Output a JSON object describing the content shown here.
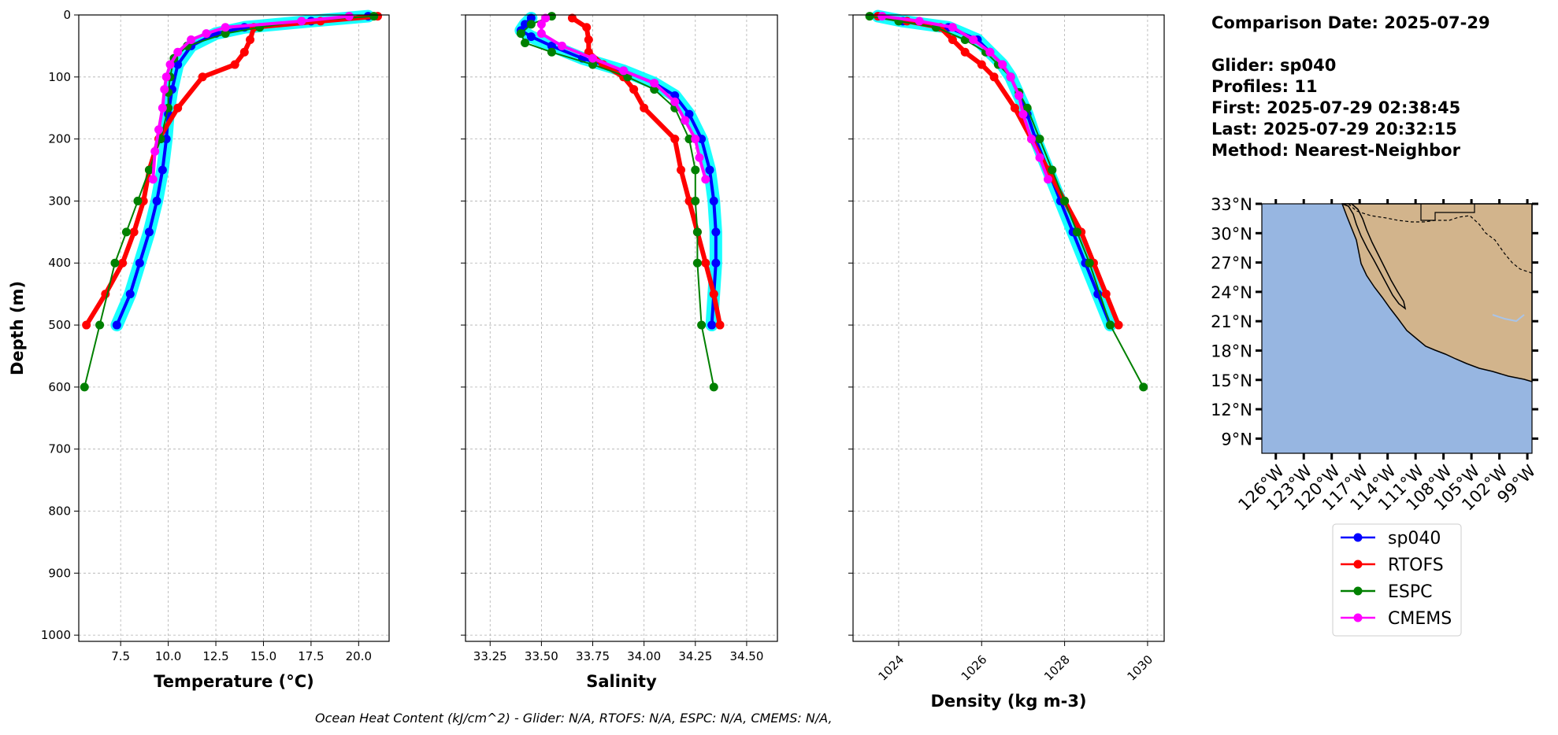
{
  "chart_data": [
    {
      "type": "line",
      "xlabel": "Temperature (°C)",
      "ylabel": "Depth (m)",
      "xlim": [
        5.3,
        21.6
      ],
      "ylim": [
        1010,
        0
      ],
      "xticks": [
        "7.5",
        "10.0",
        "12.5",
        "15.0",
        "17.5",
        "20.0"
      ],
      "yticks": [
        "0",
        "100",
        "200",
        "300",
        "400",
        "500",
        "600",
        "700",
        "800",
        "900",
        "1000"
      ],
      "grid": true,
      "series": [
        {
          "name": "sp040",
          "color": "#0000ff",
          "y": [
            2,
            10,
            20,
            30,
            50,
            80,
            120,
            160,
            200,
            250,
            300,
            350,
            400,
            450,
            500
          ],
          "x": [
            20.5,
            17.5,
            14.0,
            12.5,
            11.2,
            10.5,
            10.2,
            10.0,
            9.9,
            9.7,
            9.4,
            9.0,
            8.5,
            8.0,
            7.3
          ]
        },
        {
          "name": "RTOFS",
          "color": "#ff0000",
          "y": [
            2,
            10,
            20,
            40,
            60,
            80,
            100,
            150,
            200,
            250,
            300,
            350,
            400,
            450,
            500
          ],
          "x": [
            21.0,
            18.0,
            14.5,
            14.3,
            14.0,
            13.5,
            11.8,
            10.5,
            9.5,
            9.0,
            8.7,
            8.2,
            7.6,
            6.7,
            5.7
          ]
        },
        {
          "name": "ESPC",
          "color": "#008000",
          "y": [
            2,
            10,
            20,
            30,
            50,
            70,
            100,
            125,
            150,
            200,
            250,
            300,
            350,
            400,
            500,
            600
          ],
          "x": [
            20.8,
            17.0,
            14.8,
            13.0,
            11.0,
            10.3,
            10.1,
            10.0,
            10.0,
            9.6,
            9.0,
            8.4,
            7.8,
            7.2,
            6.4,
            5.6
          ]
        },
        {
          "name": "CMEMS",
          "color": "#ff00ff",
          "y": [
            2,
            10,
            20,
            30,
            40,
            60,
            80,
            100,
            120,
            150,
            185,
            220,
            265
          ],
          "x": [
            19.5,
            17.0,
            13.0,
            12.0,
            11.2,
            10.5,
            10.1,
            9.9,
            9.8,
            9.7,
            9.5,
            9.3,
            9.2
          ]
        }
      ]
    },
    {
      "type": "line",
      "xlabel": "Salinity",
      "xlim": [
        33.13,
        34.65
      ],
      "ylim": [
        1010,
        0
      ],
      "xticks": [
        "33.25",
        "33.50",
        "33.75",
        "34.00",
        "34.25",
        "34.50"
      ],
      "grid": true,
      "series": [
        {
          "name": "sp040",
          "color": "#0000ff",
          "y": [
            5,
            15,
            25,
            35,
            50,
            70,
            90,
            110,
            130,
            160,
            200,
            250,
            300,
            350,
            400,
            450,
            500
          ],
          "x": [
            33.45,
            33.42,
            33.4,
            33.45,
            33.55,
            33.7,
            33.9,
            34.05,
            34.15,
            34.22,
            34.28,
            34.32,
            34.34,
            34.35,
            34.35,
            34.34,
            34.33
          ]
        },
        {
          "name": "RTOFS",
          "color": "#ff0000",
          "y": [
            5,
            20,
            40,
            60,
            80,
            100,
            120,
            150,
            200,
            250,
            300,
            350,
            400,
            450,
            500
          ],
          "x": [
            33.65,
            33.72,
            33.73,
            33.73,
            33.8,
            33.9,
            33.95,
            34.0,
            34.15,
            34.18,
            34.22,
            34.26,
            34.3,
            34.34,
            34.37
          ]
        },
        {
          "name": "ESPC",
          "color": "#008000",
          "y": [
            2,
            15,
            30,
            45,
            60,
            80,
            100,
            120,
            150,
            200,
            250,
            300,
            350,
            400,
            500,
            600
          ],
          "x": [
            33.55,
            33.45,
            33.4,
            33.42,
            33.55,
            33.75,
            33.92,
            34.05,
            34.15,
            34.22,
            34.25,
            34.25,
            34.26,
            34.26,
            34.28,
            34.34
          ]
        },
        {
          "name": "CMEMS",
          "color": "#ff00ff",
          "y": [
            5,
            15,
            30,
            50,
            70,
            90,
            110,
            140,
            170,
            200,
            230,
            265
          ],
          "x": [
            33.52,
            33.5,
            33.5,
            33.6,
            33.75,
            33.9,
            34.05,
            34.15,
            34.2,
            34.25,
            34.27,
            34.3
          ]
        }
      ]
    },
    {
      "type": "line",
      "xlabel": "Density (kg m-3)",
      "xlim": [
        1022.9,
        1030.4
      ],
      "ylim": [
        1010,
        0
      ],
      "xticks": [
        "1024",
        "1026",
        "1028",
        "1030"
      ],
      "grid": true,
      "series": [
        {
          "name": "sp040",
          "color": "#0000ff",
          "y": [
            2,
            10,
            20,
            40,
            60,
            80,
            100,
            130,
            160,
            200,
            250,
            300,
            350,
            400,
            450,
            500
          ],
          "x": [
            1023.5,
            1024.1,
            1025.2,
            1025.9,
            1026.2,
            1026.5,
            1026.7,
            1026.9,
            1027.1,
            1027.3,
            1027.6,
            1027.9,
            1028.2,
            1028.5,
            1028.8,
            1029.1
          ]
        },
        {
          "name": "RTOFS",
          "color": "#ff0000",
          "y": [
            2,
            10,
            20,
            40,
            60,
            80,
            100,
            150,
            200,
            250,
            300,
            350,
            400,
            450,
            500
          ],
          "x": [
            1023.5,
            1024.2,
            1025.0,
            1025.3,
            1025.6,
            1026.0,
            1026.3,
            1026.8,
            1027.2,
            1027.6,
            1028.0,
            1028.4,
            1028.7,
            1029.0,
            1029.3
          ]
        },
        {
          "name": "ESPC",
          "color": "#008000",
          "y": [
            2,
            10,
            20,
            40,
            60,
            80,
            100,
            125,
            150,
            200,
            250,
            300,
            350,
            400,
            500,
            600
          ],
          "x": [
            1023.3,
            1024.0,
            1024.9,
            1025.6,
            1026.1,
            1026.4,
            1026.7,
            1026.9,
            1027.1,
            1027.4,
            1027.7,
            1028.0,
            1028.3,
            1028.6,
            1029.1,
            1029.9
          ]
        },
        {
          "name": "CMEMS",
          "color": "#ff00ff",
          "y": [
            2,
            10,
            20,
            40,
            60,
            80,
            100,
            130,
            160,
            200,
            230,
            265
          ],
          "x": [
            1023.6,
            1024.5,
            1025.3,
            1025.8,
            1026.2,
            1026.5,
            1026.7,
            1026.9,
            1027.0,
            1027.2,
            1027.4,
            1027.6
          ]
        }
      ]
    }
  ],
  "info_lines": [
    "Comparison Date: 2025-07-29",
    "",
    "Glider: sp040",
    "Profiles: 11",
    "First: 2025-07-29 02:38:45",
    "Last: 2025-07-29 20:32:15",
    "Method: Nearest-Neighbor"
  ],
  "map": {
    "lat_labels": [
      "33°N",
      "30°N",
      "27°N",
      "24°N",
      "21°N",
      "18°N",
      "15°N",
      "12°N",
      "9°N"
    ],
    "lon_labels": [
      "126°W",
      "123°W",
      "120°W",
      "117°W",
      "114°W",
      "111°W",
      "108°W",
      "105°W",
      "102°W",
      "99°W"
    ],
    "ocean_color": "#97b6e1",
    "land_color": "#d2b48c"
  },
  "legend": [
    {
      "label": "sp040",
      "color": "#0000ff"
    },
    {
      "label": "RTOFS",
      "color": "#ff0000"
    },
    {
      "label": "ESPC",
      "color": "#008000"
    },
    {
      "label": "CMEMS",
      "color": "#ff00ff"
    }
  ],
  "footer": "Ocean Heat Content (kJ/cm^2) - Glider: N/A,  RTOFS: N/A,  ESPC: N/A,  CMEMS: N/A,"
}
